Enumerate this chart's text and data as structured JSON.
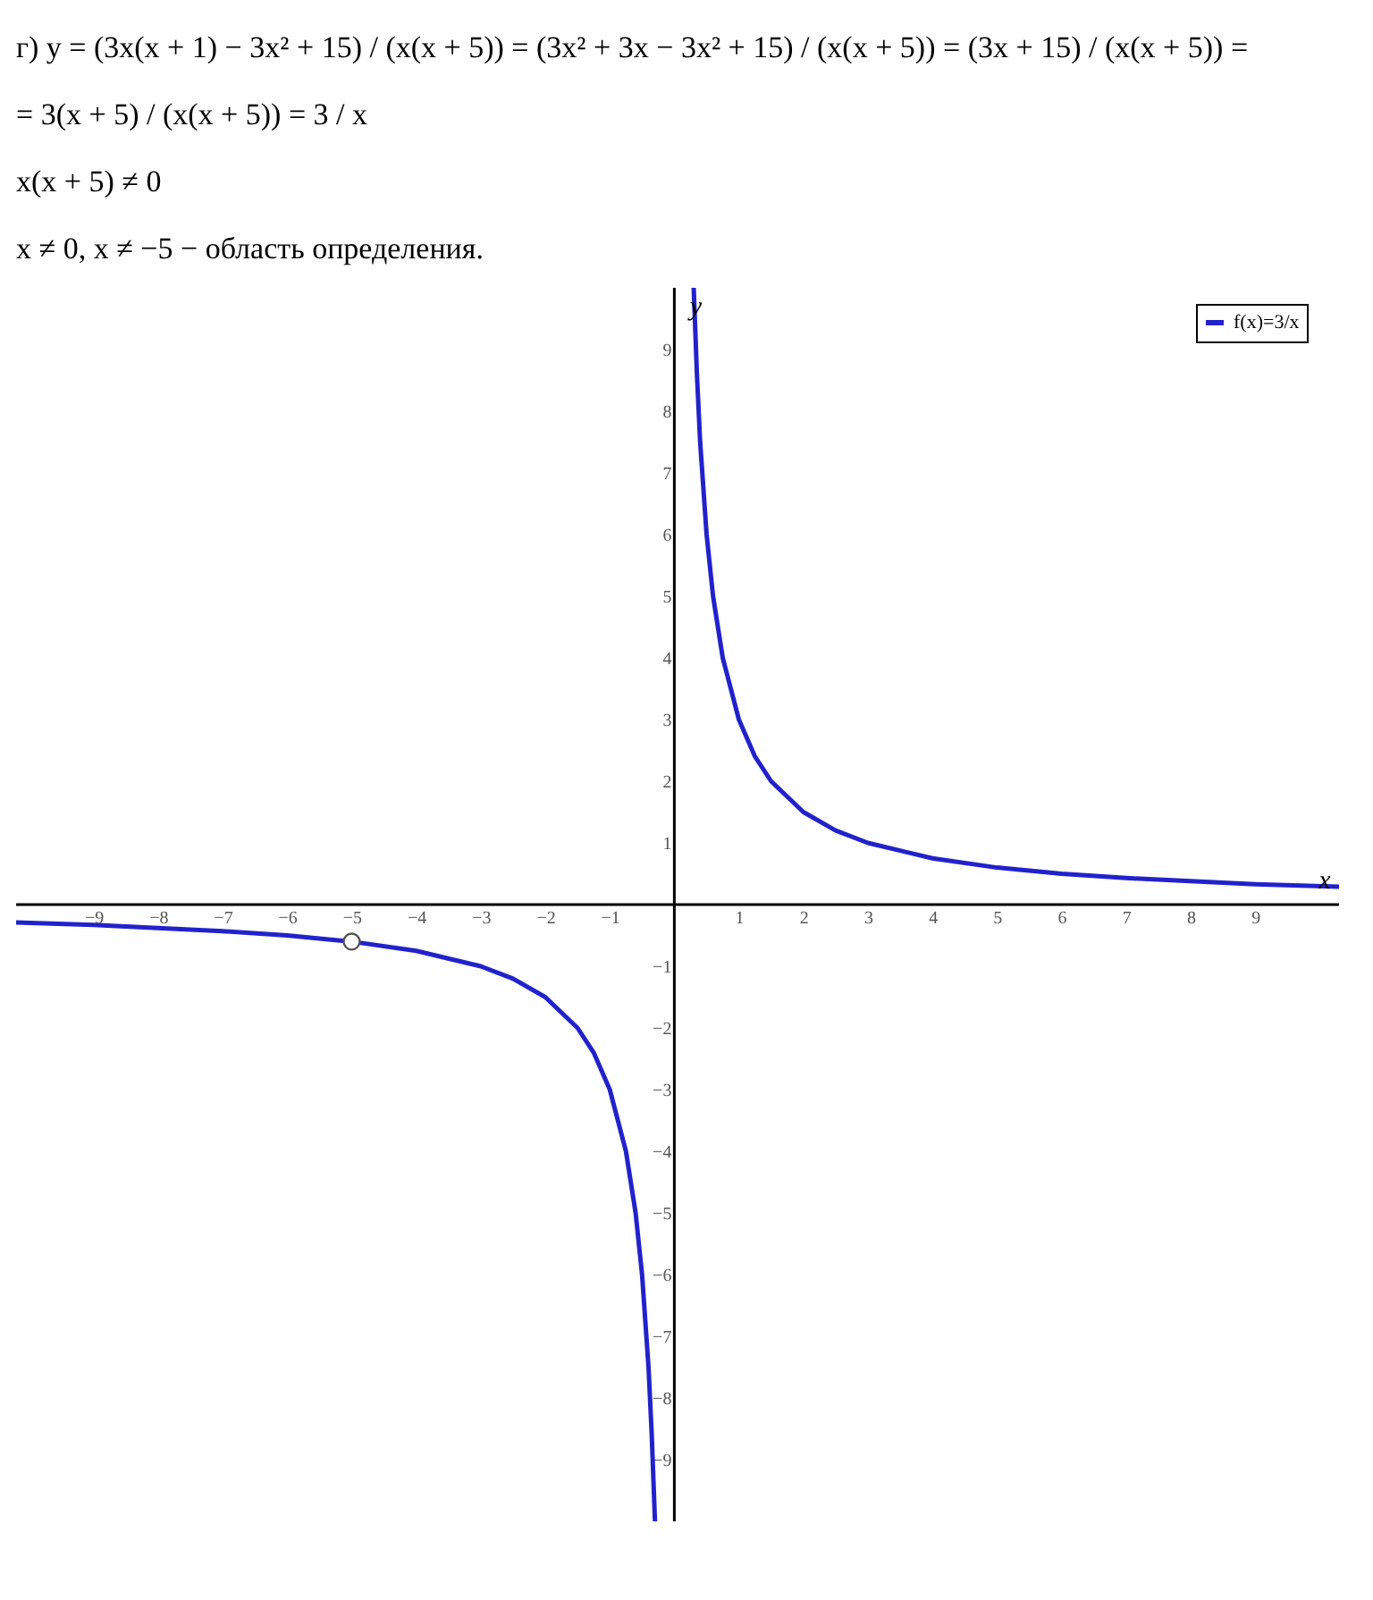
{
  "chart_data": {
    "type": "line",
    "annotations": [
      "г) y = (3x(x + 1) − 3x² + 15) / (x(x + 5)) = (3x² + 3x − 3x² + 15) / (x(x + 5)) = (3x + 15) / (x(x + 5)) =",
      "= 3(x + 5) / (x(x + 5)) = 3 / x",
      "x(x + 5) ≠ 0",
      "x ≠ 0,    x ≠ −5 − область определения."
    ],
    "xlabel": "x",
    "ylabel": "y",
    "xlim": [
      -10.2,
      10.3
    ],
    "ylim": [
      -10,
      10
    ],
    "xticks": [
      -9,
      -8,
      -7,
      -6,
      -5,
      -4,
      -3,
      -2,
      -1,
      1,
      2,
      3,
      4,
      5,
      6,
      7,
      8,
      9
    ],
    "yticks": [
      -9,
      -8,
      -7,
      -6,
      -5,
      -4,
      -3,
      -2,
      -1,
      1,
      2,
      3,
      4,
      5,
      6,
      7,
      8,
      9
    ],
    "grid": false,
    "legend": "top right",
    "line_style": "solid",
    "series": [
      {
        "name": "f(x)=3/x",
        "color": "#2222cc",
        "x": [
          -10.2,
          -9,
          -8,
          -7,
          -6,
          -5,
          -4,
          -3,
          -2.5,
          -2,
          -1.5,
          -1.25,
          -1,
          -0.75,
          -0.6,
          -0.5,
          -0.4,
          -0.35,
          -0.3,
          0,
          0.3,
          0.35,
          0.4,
          0.5,
          0.6,
          0.75,
          1,
          1.25,
          1.5,
          2,
          2.5,
          3,
          4,
          5,
          6,
          7,
          8,
          9,
          10.3
        ],
        "values": [
          -0.29,
          -0.33,
          -0.38,
          -0.43,
          -0.5,
          -0.6,
          -0.75,
          -1,
          -1.2,
          -1.5,
          -2,
          -2.4,
          -3,
          -4,
          -5,
          -6,
          -7.5,
          -8.6,
          -10,
          null,
          10,
          8.6,
          7.5,
          6,
          5,
          4,
          3,
          2.4,
          2,
          1.5,
          1.2,
          1,
          0.75,
          0.6,
          0.5,
          0.43,
          0.38,
          0.33,
          0.29
        ]
      },
      {
        "type": "scatter",
        "marker": "circle",
        "color": "#555555",
        "x": [
          -5
        ],
        "values": [
          -0.6
        ]
      }
    ]
  }
}
